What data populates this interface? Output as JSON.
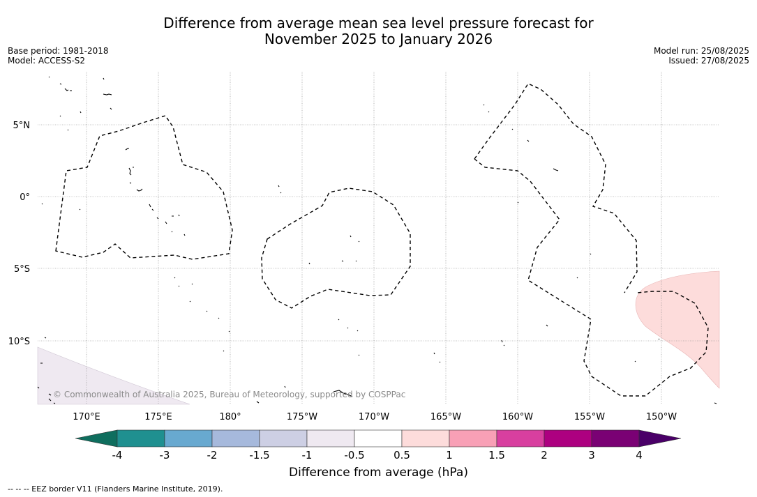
{
  "title": {
    "line1": "Difference from average mean sea level pressure forecast for",
    "line2": "November 2025 to January 2026"
  },
  "meta": {
    "base_period": "Base period: 1981-2018",
    "model": "Model: ACCESS-S2",
    "model_run": "Model run: 25/08/2025",
    "issued": "Issued: 27/08/2025"
  },
  "copyright": "© Commonwealth of Australia 2025, Bureau of Meteorology, supported by COSPPac",
  "footer": "--  --  -- EEZ border V11 (Flanders Marine Institute, 2019).",
  "map": {
    "lat_labels": [
      "5°N",
      "0°",
      "5°S",
      "10°S"
    ],
    "lon_labels": [
      "170°E",
      "175°E",
      "180°",
      "175°W",
      "170°W",
      "165°W",
      "160°W",
      "155°W",
      "150°W"
    ]
  },
  "colorbar": {
    "title": "Difference from average (hPa)",
    "ticks": [
      "-4",
      "-3",
      "-2",
      "-1.5",
      "-1",
      "-0.5",
      "0.5",
      "1",
      "1.5",
      "2",
      "3",
      "4"
    ],
    "colors": {
      "below": "#0f6e5e",
      "bins": [
        "#1f9090",
        "#68a9d0",
        "#a6b9dc",
        "#cdcfe4",
        "#efe9f1",
        "#ffffff",
        "#fddcdb",
        "#f8a0b6",
        "#d83f9f",
        "#ad0080",
        "#7a0174"
      ],
      "above": "#4a0068"
    }
  }
}
